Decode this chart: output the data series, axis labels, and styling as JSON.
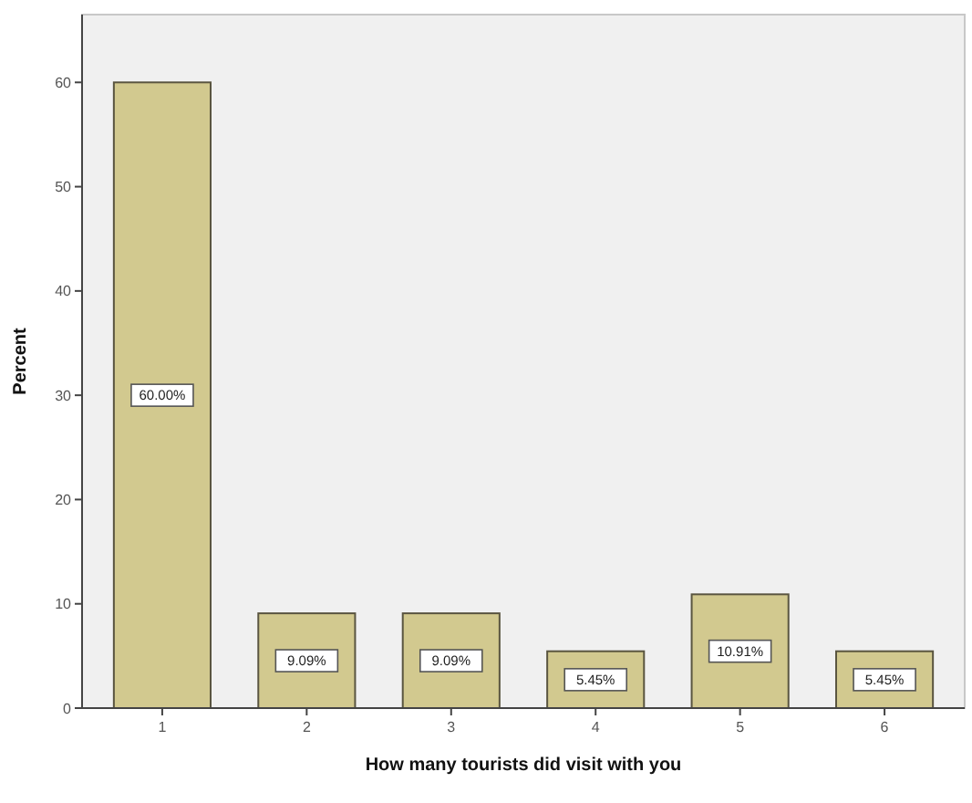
{
  "chart_data": {
    "type": "bar",
    "xlabel": "How many tourists did visit with you",
    "ylabel": "Percent",
    "categories": [
      "1",
      "2",
      "3",
      "4",
      "5",
      "6"
    ],
    "values": [
      60,
      9.09,
      9.09,
      5.45,
      10.91,
      5.45
    ],
    "value_labels": [
      "60.00%",
      "9.09%",
      "9.09%",
      "5.45%",
      "10.91%",
      "5.45%"
    ],
    "color": "#d2c98f",
    "ylim": [
      0,
      66.5
    ],
    "yticks": [
      0,
      10,
      20,
      30,
      40,
      50,
      60
    ],
    "grid": false
  }
}
